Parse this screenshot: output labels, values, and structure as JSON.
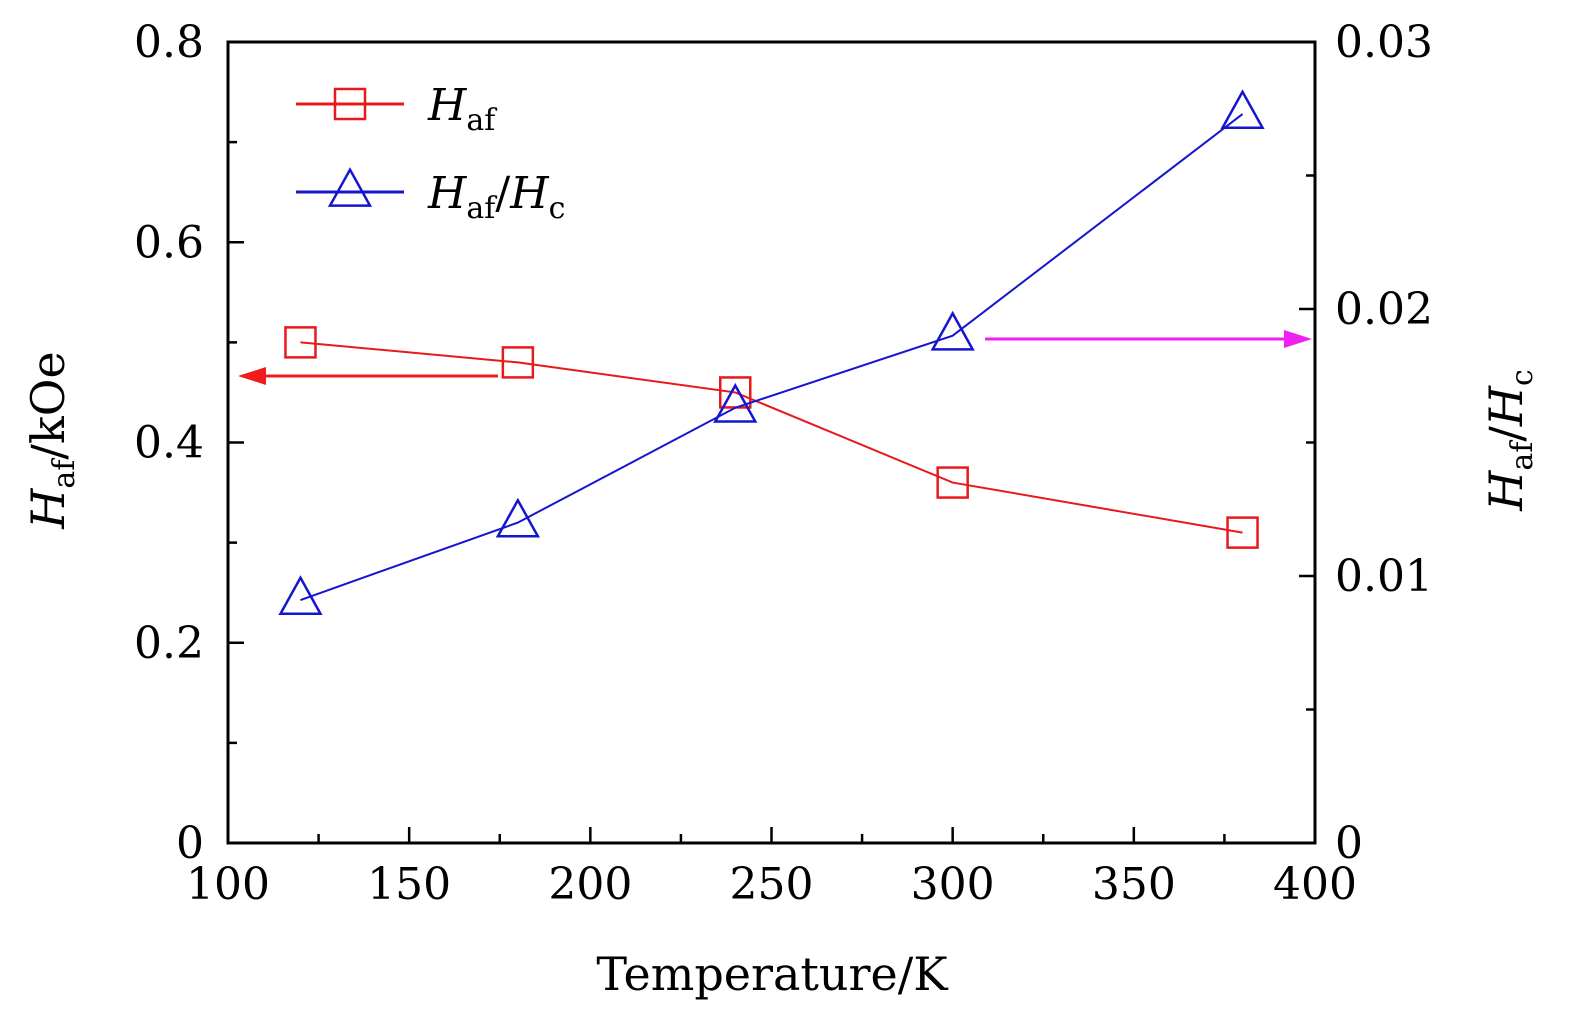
{
  "chart_data": {
    "type": "line",
    "x_axis": {
      "label": "Temperature/K",
      "range": [
        100,
        400
      ],
      "ticks": [
        "100",
        "150",
        "200",
        "250",
        "300",
        "350",
        "400"
      ]
    },
    "y_axis_left": {
      "label_main": "H",
      "label_sub": "af",
      "label_rest": "/kOe",
      "range": [
        0,
        0.8
      ],
      "ticks": [
        "0",
        "0.2",
        "0.4",
        "0.6",
        "0.8"
      ]
    },
    "y_axis_right": {
      "label_main": "H",
      "label_sub": "af",
      "label_slash": "/",
      "label_main2": "H",
      "label_sub2": "c",
      "range": [
        0,
        0.03
      ],
      "ticks": [
        "0",
        "0.01",
        "0.02",
        "0.03"
      ]
    },
    "series": [
      {
        "name": "H_af",
        "legend_main": "H",
        "legend_sub": "af",
        "axis": "left",
        "marker": "square",
        "color": "#e8191c",
        "x": [
          120,
          180,
          240,
          300,
          380
        ],
        "y": [
          0.5,
          0.48,
          0.45,
          0.36,
          0.31
        ]
      },
      {
        "name": "H_af/H_c",
        "legend_main": "H",
        "legend_sub": "af",
        "legend_slash": "/",
        "legend_main2": "H",
        "legend_sub2": "c",
        "axis": "right",
        "marker": "triangle",
        "color": "#1515d0",
        "x": [
          120,
          180,
          240,
          300,
          380
        ],
        "y": [
          0.0091,
          0.012,
          0.0163,
          0.019,
          0.0273
        ]
      }
    ],
    "annotations": [
      {
        "type": "arrow",
        "direction": "left",
        "color": "#ee1c1c",
        "points_to": "left axis"
      },
      {
        "type": "arrow",
        "direction": "right",
        "color": "#ee22ee",
        "points_to": "right axis"
      }
    ],
    "legend_position": "top-left",
    "grid": false
  }
}
